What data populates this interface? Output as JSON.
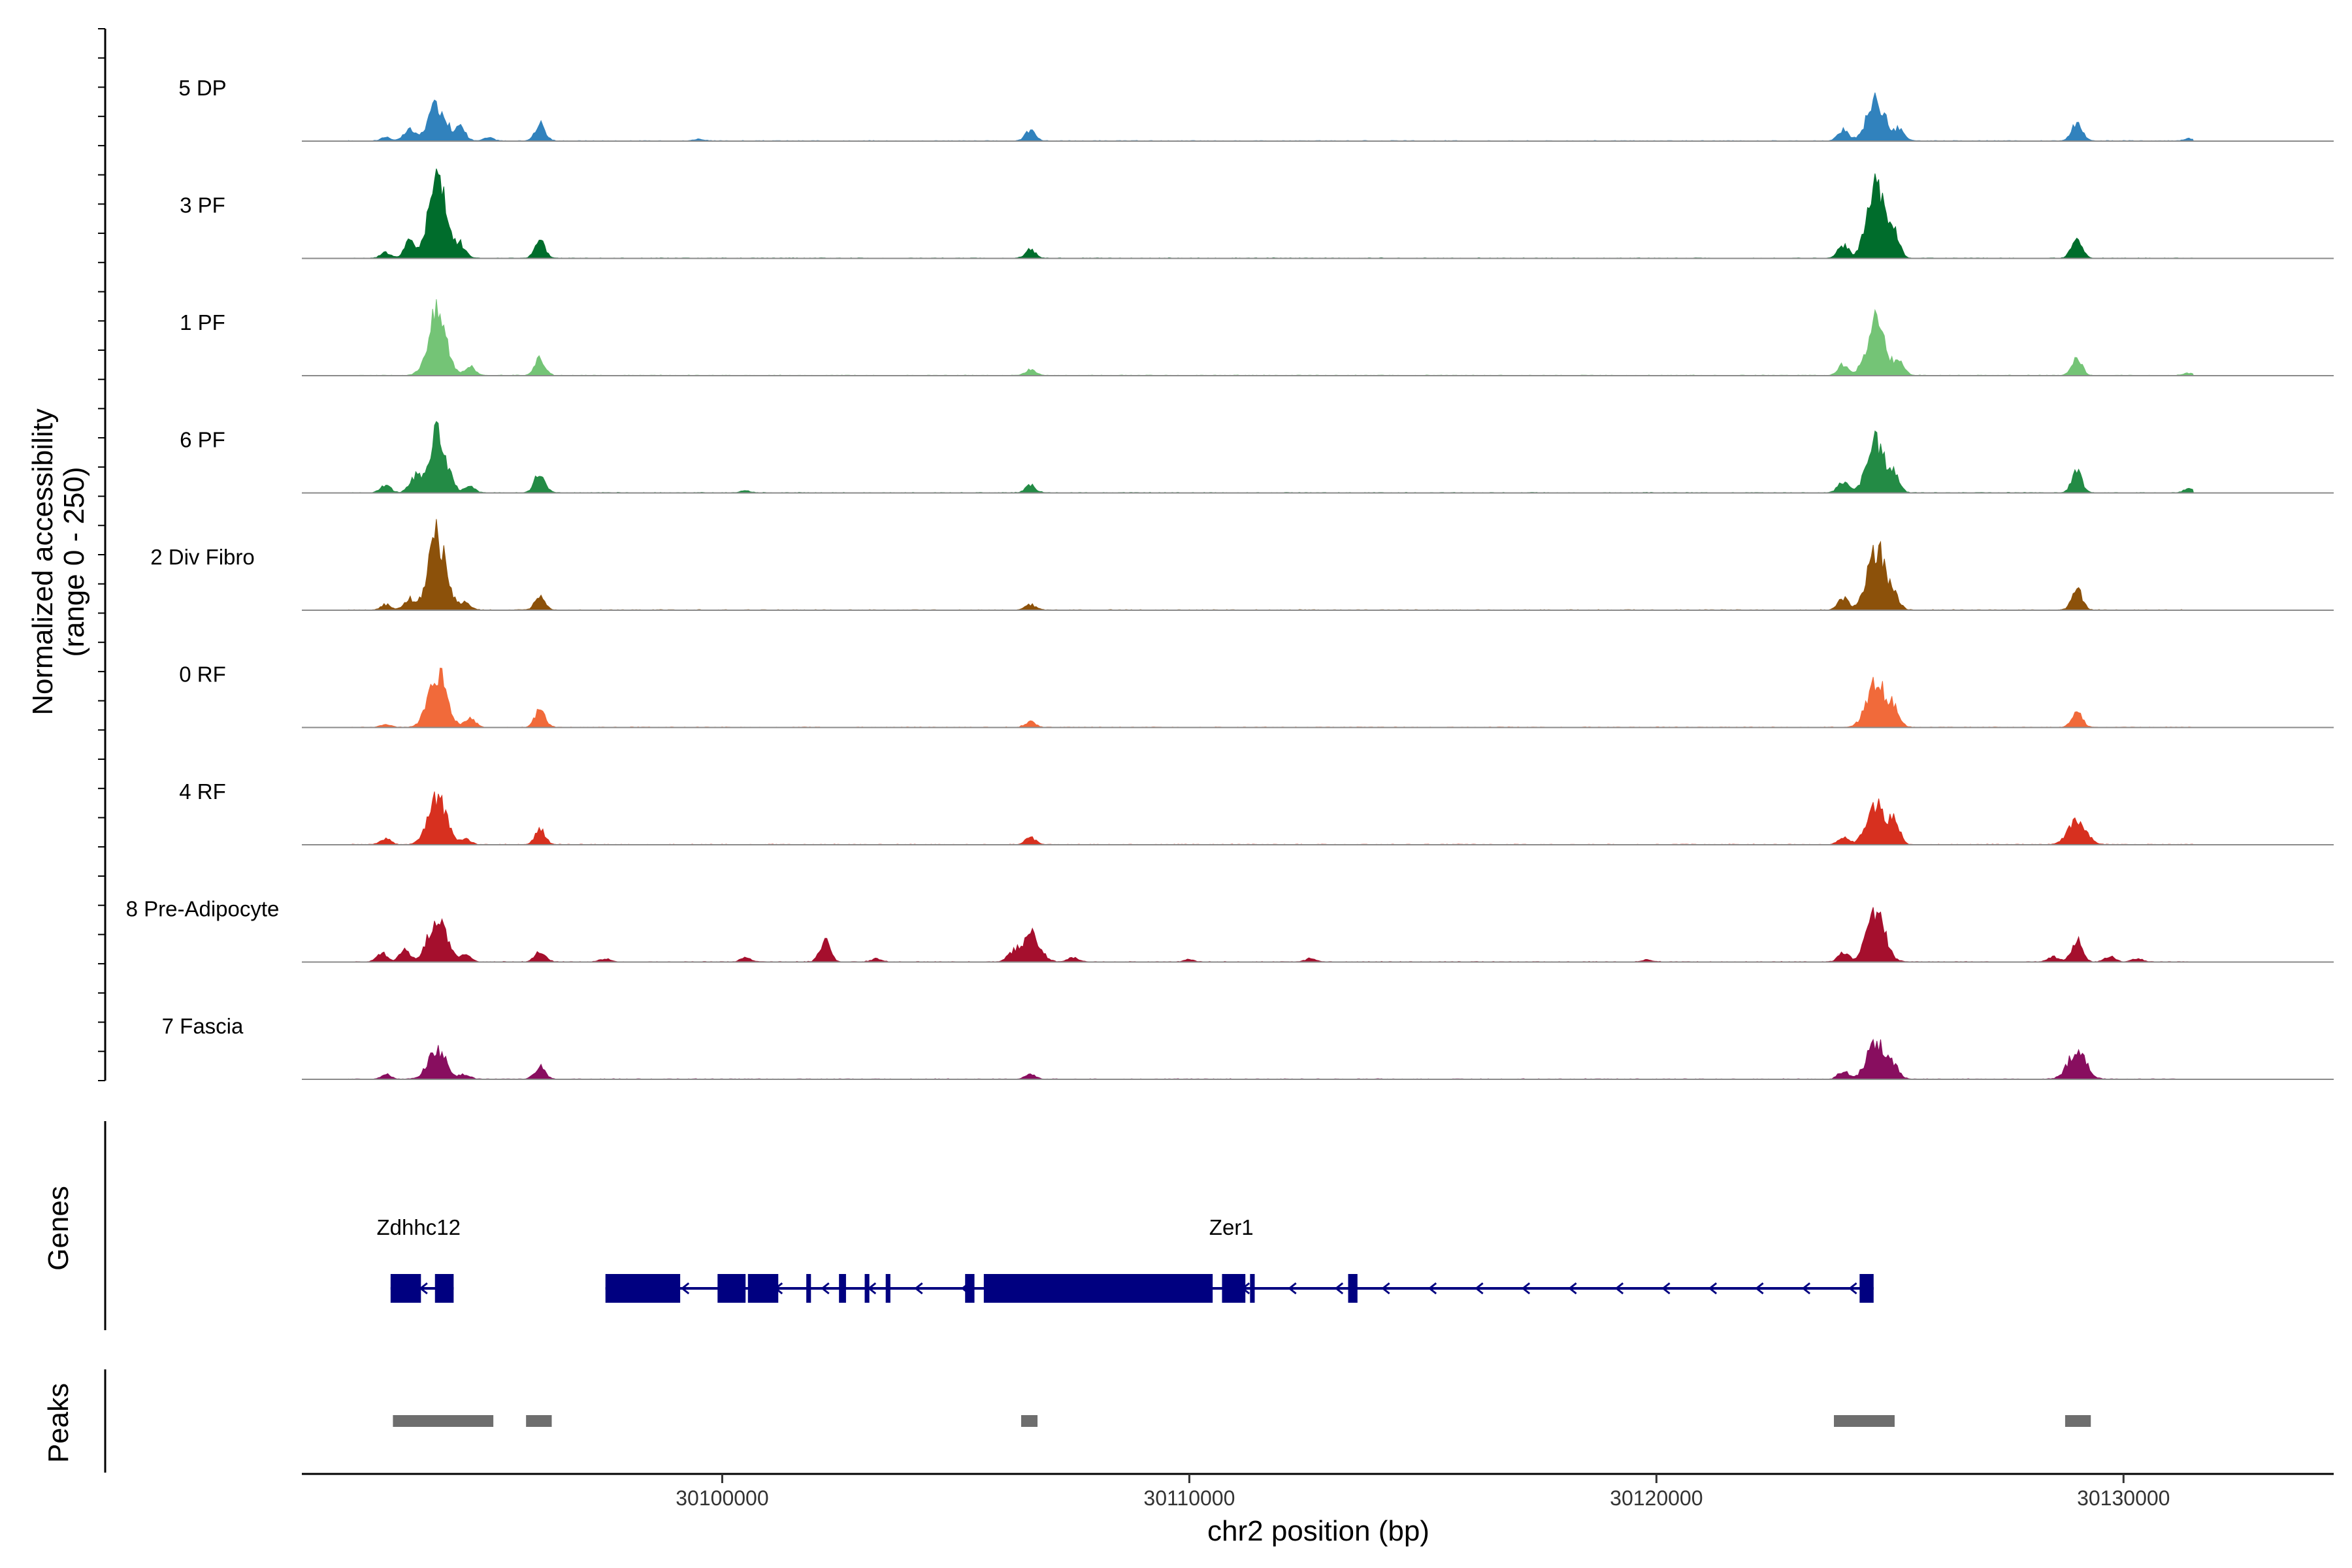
{
  "chart_data": {
    "type": "area",
    "title": "",
    "ylabel_line1": "Normalized accessibility",
    "ylabel_line2": "(range 0 - 250)",
    "xlabel": "chr2 position (bp)",
    "ylim": [
      0,
      250
    ],
    "xlim": [
      30091000,
      30134500
    ],
    "x_ticks": [
      30100000,
      30110000,
      30120000,
      30130000
    ],
    "x_tick_labels": [
      "30100000",
      "30110000",
      "30120000",
      "30130000"
    ],
    "gene_panel_label": "Genes",
    "peak_panel_label": "Peaks",
    "track_range": [
      30092000,
      30131500
    ],
    "tracks": [
      {
        "name": "5 DP",
        "color": "#3182BD",
        "peaks": [
          [
            30092800,
            10
          ],
          [
            30093300,
            30
          ],
          [
            30093900,
            95
          ],
          [
            30094400,
            35
          ],
          [
            30095000,
            8
          ],
          [
            30096100,
            45
          ],
          [
            30099500,
            5
          ],
          [
            30106600,
            28
          ],
          [
            30124000,
            28
          ],
          [
            30124700,
            110
          ],
          [
            30125200,
            30
          ],
          [
            30129000,
            50
          ],
          [
            30131400,
            6
          ]
        ]
      },
      {
        "name": "3 PF",
        "color": "#006D2C",
        "peaks": [
          [
            30092800,
            15
          ],
          [
            30093300,
            45
          ],
          [
            30093900,
            210
          ],
          [
            30094400,
            35
          ],
          [
            30096100,
            45
          ],
          [
            30106600,
            22
          ],
          [
            30124000,
            35
          ],
          [
            30124700,
            190
          ],
          [
            30125100,
            60
          ],
          [
            30129000,
            55
          ]
        ]
      },
      {
        "name": "1 PF",
        "color": "#74C476",
        "peaks": [
          [
            30093900,
            175
          ],
          [
            30094600,
            25
          ],
          [
            30096100,
            45
          ],
          [
            30106600,
            15
          ],
          [
            30124000,
            30
          ],
          [
            30124700,
            145
          ],
          [
            30125200,
            40
          ],
          [
            30129000,
            50
          ],
          [
            30131400,
            6
          ]
        ]
      },
      {
        "name": "6 PF",
        "color": "#238B45",
        "peaks": [
          [
            30092800,
            20
          ],
          [
            30093400,
            40
          ],
          [
            30093900,
            160
          ],
          [
            30094600,
            15
          ],
          [
            30096100,
            55
          ],
          [
            30100500,
            5
          ],
          [
            30106600,
            20
          ],
          [
            30124000,
            30
          ],
          [
            30124700,
            135
          ],
          [
            30125100,
            45
          ],
          [
            30129000,
            55
          ],
          [
            30131400,
            10
          ]
        ]
      },
      {
        "name": "2 Div Fibro",
        "color": "#8C510A",
        "peaks": [
          [
            30092800,
            15
          ],
          [
            30093300,
            30
          ],
          [
            30093900,
            200
          ],
          [
            30094500,
            20
          ],
          [
            30096100,
            35
          ],
          [
            30106600,
            15
          ],
          [
            30124000,
            30
          ],
          [
            30124700,
            170
          ],
          [
            30125100,
            30
          ],
          [
            30129000,
            60
          ]
        ]
      },
      {
        "name": "0 RF",
        "color": "#F16A3A",
        "peaks": [
          [
            30092800,
            8
          ],
          [
            30093900,
            150
          ],
          [
            30094600,
            25
          ],
          [
            30096100,
            45
          ],
          [
            30106600,
            15
          ],
          [
            30124700,
            130
          ],
          [
            30125100,
            50
          ],
          [
            30129000,
            45
          ]
        ]
      },
      {
        "name": "4 RF",
        "color": "#D7301F",
        "peaks": [
          [
            30092800,
            15
          ],
          [
            30093900,
            130
          ],
          [
            30094500,
            15
          ],
          [
            30096100,
            40
          ],
          [
            30106600,
            18
          ],
          [
            30124000,
            20
          ],
          [
            30124700,
            110
          ],
          [
            30125100,
            60
          ],
          [
            30129000,
            65
          ]
        ]
      },
      {
        "name": "8 Pre-Adipocyte",
        "color": "#A50F2D",
        "peaks": [
          [
            30092700,
            25
          ],
          [
            30093200,
            35
          ],
          [
            30093900,
            120
          ],
          [
            30094500,
            20
          ],
          [
            30096100,
            30
          ],
          [
            30097500,
            8
          ],
          [
            30100500,
            10
          ],
          [
            30102200,
            55
          ],
          [
            30103300,
            8
          ],
          [
            30106200,
            20
          ],
          [
            30106600,
            75
          ],
          [
            30107500,
            12
          ],
          [
            30110000,
            6
          ],
          [
            30112600,
            10
          ],
          [
            30119800,
            5
          ],
          [
            30124000,
            25
          ],
          [
            30124700,
            140
          ],
          [
            30128500,
            15
          ],
          [
            30129000,
            60
          ],
          [
            30129700,
            15
          ],
          [
            30130300,
            8
          ]
        ]
      },
      {
        "name": "7 Fascia",
        "color": "#880E5F",
        "peaks": [
          [
            30092800,
            12
          ],
          [
            30093900,
            80
          ],
          [
            30094500,
            12
          ],
          [
            30096100,
            35
          ],
          [
            30106600,
            15
          ],
          [
            30124000,
            20
          ],
          [
            30124700,
            100
          ],
          [
            30125100,
            30
          ],
          [
            30129000,
            75
          ]
        ]
      }
    ],
    "genes": [
      {
        "name": "Zdhhc12",
        "strand": "-",
        "start": 30092900,
        "end": 30094250,
        "label_x": 30093500,
        "exons": [
          [
            30092900,
            30093550
          ],
          [
            30093850,
            30094250
          ]
        ]
      },
      {
        "name": "Zer1",
        "strand": "-",
        "start": 30097500,
        "end": 30124650,
        "label_x": 30110900,
        "exons": [
          [
            30097500,
            30099100
          ],
          [
            30099900,
            30100500
          ],
          [
            30100550,
            30101200
          ],
          [
            30101800,
            30101900
          ],
          [
            30102500,
            30102650
          ],
          [
            30103050,
            30103150
          ],
          [
            30103500,
            30103600
          ],
          [
            30105200,
            30105400
          ],
          [
            30105600,
            30110500
          ],
          [
            30110700,
            30111200
          ],
          [
            30111300,
            30111400
          ],
          [
            30113400,
            30113600
          ],
          [
            30124350,
            30124650
          ]
        ]
      }
    ],
    "peak_regions": [
      [
        30092950,
        30095100
      ],
      [
        30095800,
        30096350
      ],
      [
        30106400,
        30106750
      ],
      [
        30123800,
        30125100
      ],
      [
        30128750,
        30129300
      ]
    ]
  }
}
